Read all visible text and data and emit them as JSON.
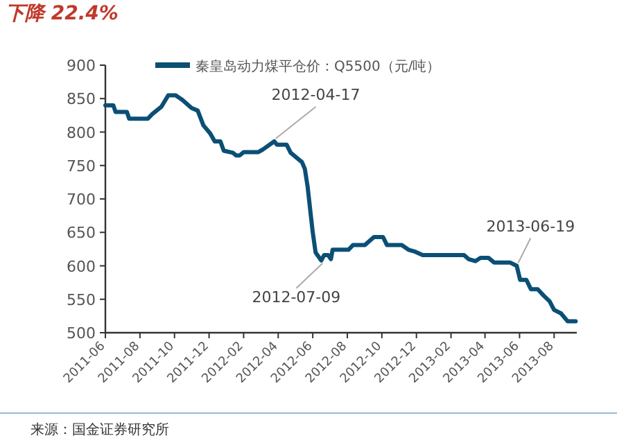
{
  "chart_data": {
    "type": "line",
    "title": "下降 22.4%",
    "legend": "top",
    "grid": false,
    "xlim": [
      "2011-06-24",
      "2013-10-03"
    ],
    "ylim": [
      500,
      900
    ],
    "yticks": [
      500,
      550,
      600,
      650,
      700,
      750,
      800,
      850,
      900
    ],
    "xticks": [
      {
        "value": "2011-06-24",
        "label": "2011-06"
      },
      {
        "value": "2011-08-24",
        "label": "2011-08"
      },
      {
        "value": "2011-10-24",
        "label": "2011-10"
      },
      {
        "value": "2011-12-24",
        "label": "2011-12"
      },
      {
        "value": "2012-02-23",
        "label": "2012-02"
      },
      {
        "value": "2012-04-24",
        "label": "2012-04"
      },
      {
        "value": "2012-06-24",
        "label": "2012-06"
      },
      {
        "value": "2012-08-24",
        "label": "2012-08"
      },
      {
        "value": "2012-10-24",
        "label": "2012-10"
      },
      {
        "value": "2012-12-24",
        "label": "2012-12"
      },
      {
        "value": "2013-02-23",
        "label": "2013-02"
      },
      {
        "value": "2013-04-24",
        "label": "2013-04"
      },
      {
        "value": "2013-06-24",
        "label": "2013-06"
      },
      {
        "value": "2013-08-24",
        "label": "2013-08"
      }
    ],
    "series": [
      {
        "name": "秦皇岛动力煤平仓价：Q5500（元/吨）",
        "color": "#0b4f75",
        "x": [
          "2011-06-24",
          "2011-07-08",
          "2011-07-12",
          "2011-08-01",
          "2011-08-05",
          "2011-09-07",
          "2011-09-15",
          "2011-10-01",
          "2011-10-13",
          "2011-10-26",
          "2011-11-07",
          "2011-11-23",
          "2011-12-04",
          "2011-12-14",
          "2011-12-26",
          "2012-01-03",
          "2012-01-13",
          "2012-01-19",
          "2012-02-04",
          "2012-02-10",
          "2012-02-16",
          "2012-02-23",
          "2012-03-20",
          "2012-03-28",
          "2012-04-17",
          "2012-04-22",
          "2012-05-09",
          "2012-05-16",
          "2012-06-05",
          "2012-06-10",
          "2012-06-15",
          "2012-06-20",
          "2012-06-24",
          "2012-06-29",
          "2012-07-09",
          "2012-07-14",
          "2012-07-21",
          "2012-07-26",
          "2012-07-29",
          "2012-08-26",
          "2012-09-03",
          "2012-09-24",
          "2012-10-10",
          "2012-10-26",
          "2012-11-02",
          "2012-11-28",
          "2012-12-10",
          "2012-12-22",
          "2013-01-04",
          "2013-03-18",
          "2013-03-26",
          "2013-04-07",
          "2013-04-16",
          "2013-04-30",
          "2013-05-10",
          "2013-06-07",
          "2013-06-19",
          "2013-06-25",
          "2013-07-06",
          "2013-07-14",
          "2013-07-26",
          "2013-08-06",
          "2013-08-16",
          "2013-08-24",
          "2013-09-05",
          "2013-09-17",
          "2013-10-01"
        ],
        "values": [
          840,
          840,
          830,
          830,
          820,
          820,
          827,
          838,
          855,
          855,
          848,
          836,
          832,
          810,
          798,
          786,
          786,
          772,
          769,
          765,
          765,
          770,
          770,
          774,
          786,
          781,
          781,
          769,
          755,
          745,
          718,
          680,
          650,
          620,
          608,
          616,
          616,
          610,
          624,
          624,
          631,
          631,
          643,
          643,
          631,
          631,
          624,
          621,
          616,
          616,
          610,
          607,
          612,
          612,
          605,
          605,
          600,
          579,
          579,
          565,
          565,
          555,
          547,
          534,
          529,
          517,
          517
        ]
      }
    ],
    "annotations": [
      {
        "text": "2012-04-17",
        "x": "2012-04-17",
        "y": 786
      },
      {
        "text": "2012-07-09",
        "x": "2012-07-09",
        "y": 608
      },
      {
        "text": "2013-06-19",
        "x": "2013-06-19",
        "y": 600
      },
      "来源：国金证券研究所"
    ]
  }
}
